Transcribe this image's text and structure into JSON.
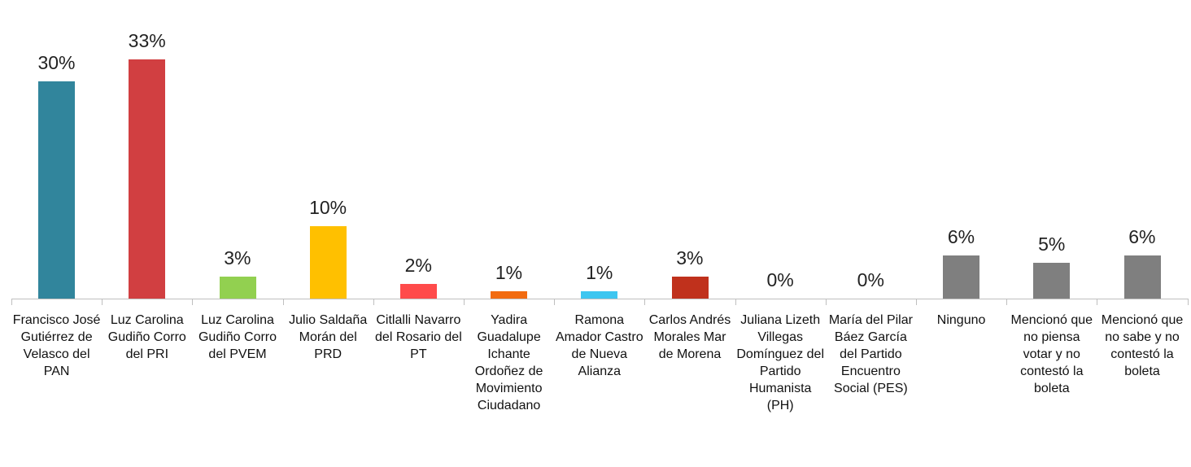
{
  "chart_data": {
    "type": "bar",
    "categories": [
      "Francisco José Gutiérrez de Velasco del PAN",
      "Luz Carolina Gudiño Corro del PRI",
      "Luz Carolina Gudiño Corro del PVEM",
      "Julio Saldaña Morán del PRD",
      "Citlalli Navarro del Rosario del PT",
      "Yadira Guadalupe Ichante Ordoñez de Movimiento Ciudadano",
      "Ramona Amador Castro de Nueva Alianza",
      "Carlos Andrés Morales Mar de Morena",
      "Juliana Lizeth Villegas Domínguez del Partido Humanista (PH)",
      "María del Pilar Báez García del Partido Encuentro Social (PES)",
      "Ninguno",
      "Mencionó que no piensa votar y no contestó la boleta",
      "Mencionó que no sabe y no contestó la boleta"
    ],
    "values": [
      30,
      33,
      3,
      10,
      2,
      1,
      1,
      3,
      0,
      0,
      6,
      5,
      6
    ],
    "value_labels": [
      "30%",
      "33%",
      "3%",
      "10%",
      "2%",
      "1%",
      "1%",
      "3%",
      "0%",
      "0%",
      "6%",
      "5%",
      "6%"
    ],
    "colors": [
      "#31859c",
      "#d13f41",
      "#92d050",
      "#ffc000",
      "#ff4b4b",
      "#f26b10",
      "#3ec6f0",
      "#c0311c",
      null,
      null,
      "#7f7f7f",
      "#7f7f7f",
      "#7f7f7f"
    ]
  }
}
